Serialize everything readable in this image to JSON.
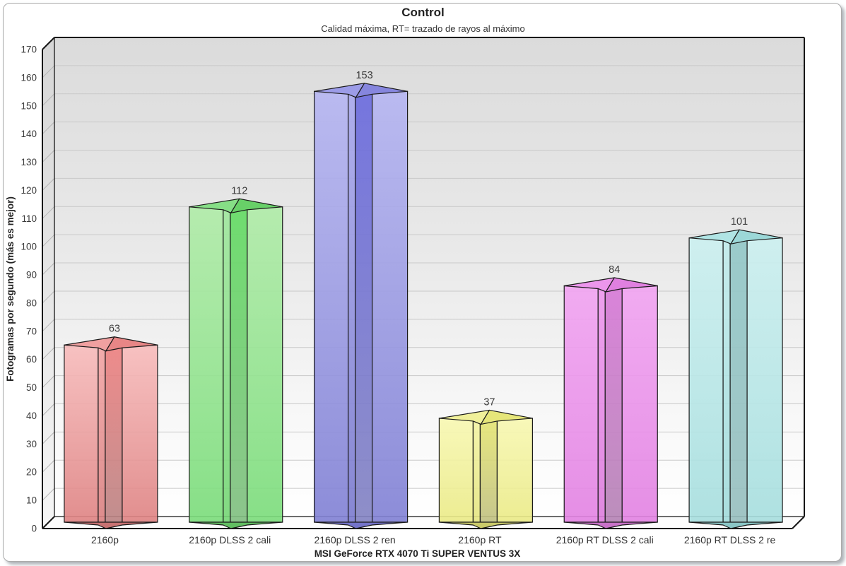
{
  "page": {
    "frame": {
      "border_color": "#ABABAB",
      "shadow_color": "#6E7680",
      "background": "#FFFFFF"
    }
  },
  "chart_data": {
    "type": "bar",
    "variant": "3d-star-column",
    "title": "Control",
    "subtitle": "Calidad máxima, RT= trazado de rayos al máximo",
    "xlabel": "MSI GeForce RTX 4070 Ti SUPER VENTUS 3X",
    "ylabel": "Fotogramas por segundo (más es mejor)",
    "ylim": [
      0,
      170
    ],
    "ytick_step": 10,
    "grid": true,
    "legend": "none",
    "wall_gradient": [
      "#DBDBDB",
      "#EBEBEB",
      "#F8F8F8",
      "#FFFFFF"
    ],
    "categories": [
      "2160p",
      "2160p DLSS 2 cali",
      "2160p DLSS 2 ren",
      "2160p RT",
      "2160p RT DLSS 2 cali",
      "2160p RT DLSS 2 re"
    ],
    "values": [
      63,
      112,
      153,
      37,
      84,
      101
    ],
    "bar_colors": [
      {
        "name": "red",
        "face_top": "#F8BCBC",
        "face_bottom": "#DE8282",
        "mid_top": "#F3A6A6",
        "mid_bottom": "#D98080",
        "inner_top": "#EE8080",
        "inner_bottom": "#BA8282",
        "cap_left": "#F0A0A0",
        "cap_right": "#E88686",
        "cap_bottom": "#C87272"
      },
      {
        "name": "green",
        "face_top": "#B0ECA8",
        "face_bottom": "#7ADC7A",
        "mid_top": "#A0E89E",
        "mid_bottom": "#74D674",
        "inner_top": "#62DC62",
        "inner_bottom": "#80BE80",
        "cap_left": "#86DE86",
        "cap_right": "#68D068",
        "cap_bottom": "#62BE62"
      },
      {
        "name": "blue",
        "face_top": "#B6B6F2",
        "face_bottom": "#8080D4",
        "mid_top": "#AAAAEE",
        "mid_bottom": "#7A7ACE",
        "inner_top": "#6A6ADE",
        "inner_bottom": "#8282C2",
        "cap_left": "#9C9CE8",
        "cap_right": "#8686DE",
        "cap_bottom": "#7474CA"
      },
      {
        "name": "yellow",
        "face_top": "#F8F8B2",
        "face_bottom": "#EAEA86",
        "mid_top": "#F4F4A4",
        "mid_bottom": "#E4E480",
        "inner_top": "#E6E672",
        "inner_bottom": "#C0C080",
        "cap_left": "#F0F09A",
        "cap_right": "#E6E67A",
        "cap_bottom": "#CACA6A"
      },
      {
        "name": "magenta",
        "face_top": "#F2A4F2",
        "face_bottom": "#E282E2",
        "mid_top": "#EE98EE",
        "mid_bottom": "#DC7CDC",
        "inner_top": "#D878D8",
        "inner_bottom": "#B482B4",
        "cap_left": "#EC96EC",
        "cap_right": "#E080E0",
        "cap_bottom": "#C872C8"
      },
      {
        "name": "cyan",
        "face_top": "#CCF0F0",
        "face_bottom": "#A6DEDE",
        "mid_top": "#C2ECEC",
        "mid_bottom": "#A0DADA",
        "inner_top": "#92C8C8",
        "inner_bottom": "#96BEBE",
        "cap_left": "#B0E4E4",
        "cap_right": "#9CD8D8",
        "cap_bottom": "#8AC6C6"
      }
    ],
    "text_colors": {
      "ticks": "#3A3A3A",
      "values": "#3C3C3C",
      "categories": "#333333",
      "axis_titles": "#222222"
    }
  }
}
